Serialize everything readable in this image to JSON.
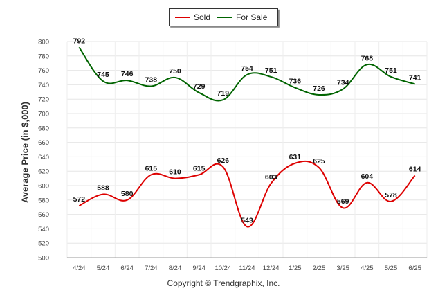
{
  "legend": {
    "items": [
      {
        "label": "Sold",
        "color": "#dd0000"
      },
      {
        "label": "For Sale",
        "color": "#006400"
      }
    ]
  },
  "footer": {
    "copyright": "Copyright © Trendgraphix, Inc."
  },
  "chart_data": {
    "type": "line",
    "title": "",
    "xlabel": "",
    "ylabel": "Average Price (in $,000)",
    "ylim": [
      500,
      800
    ],
    "y_ticks": [
      500,
      520,
      540,
      560,
      580,
      600,
      620,
      640,
      660,
      680,
      700,
      720,
      740,
      760,
      780,
      800
    ],
    "grid": true,
    "legend_position": "top-center",
    "categories": [
      "4/24",
      "5/24",
      "6/24",
      "7/24",
      "8/24",
      "9/24",
      "10/24",
      "11/24",
      "12/24",
      "1/25",
      "2/25",
      "3/25",
      "4/25",
      "5/25",
      "6/25"
    ],
    "series": [
      {
        "name": "Sold",
        "color": "#dd0000",
        "values": [
          572,
          588,
          580,
          615,
          610,
          615,
          626,
          543,
          603,
          631,
          625,
          569,
          604,
          578,
          614
        ]
      },
      {
        "name": "For Sale",
        "color": "#006400",
        "values": [
          792,
          745,
          746,
          738,
          750,
          729,
          719,
          754,
          751,
          736,
          726,
          734,
          768,
          751,
          741
        ]
      }
    ]
  }
}
